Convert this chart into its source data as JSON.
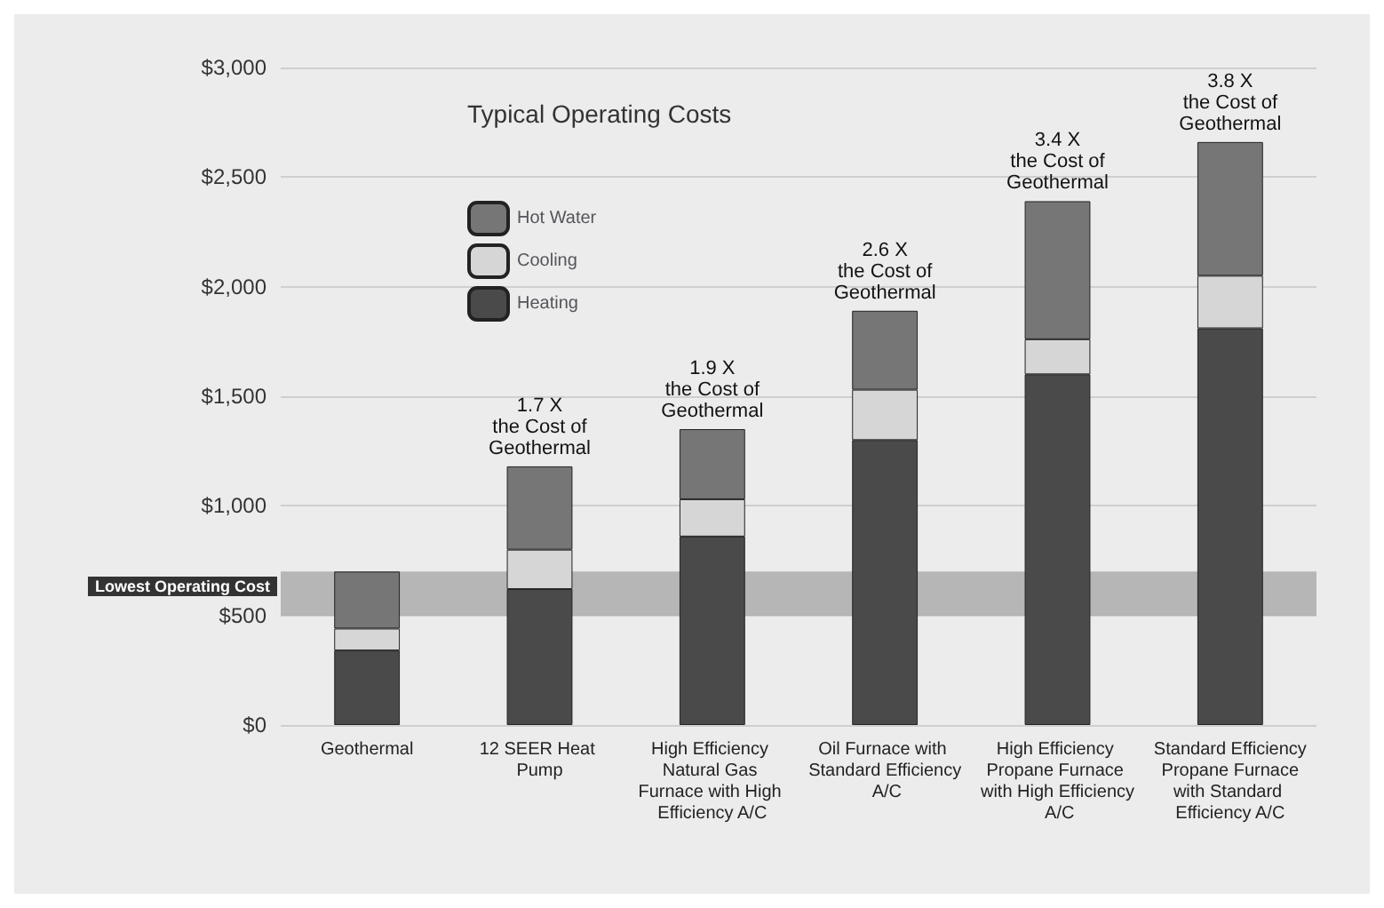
{
  "chart_data": {
    "type": "bar",
    "title": "Typical Operating Costs",
    "stacked": true,
    "categories": [
      "Geothermal",
      "12 SEER Heat Pump",
      "High Efficiency Natural Gas Furnace with High Efficiency A/C",
      "Oil Furnace with Standard Efficiency A/C",
      "High Efficiency Propane Furnace with High Efficiency A/C",
      "Standard Efficiency Propane Furnace with Standard Efficiency A/C"
    ],
    "series": [
      {
        "name": "Heating",
        "color": "#4a4a4a",
        "values": [
          340,
          620,
          860,
          1300,
          1600,
          1810
        ]
      },
      {
        "name": "Cooling",
        "color": "#d6d6d6",
        "values": [
          100,
          180,
          170,
          230,
          160,
          240
        ]
      },
      {
        "name": "Hot Water",
        "color": "#767676",
        "values": [
          260,
          380,
          320,
          360,
          630,
          610
        ]
      }
    ],
    "ylim": [
      0,
      3000
    ],
    "yticks": [
      {
        "value": 0,
        "label": "$0"
      },
      {
        "value": 500,
        "label": "$500"
      },
      {
        "value": 1000,
        "label": "$1,000"
      },
      {
        "value": 1500,
        "label": "$1,500"
      },
      {
        "value": 2000,
        "label": "$2,000"
      },
      {
        "value": 2500,
        "label": "$2,500"
      },
      {
        "value": 3000,
        "label": "$3,000"
      }
    ],
    "grid": "y",
    "legend": "top left",
    "bands": [
      {
        "axis": "y",
        "from": 500,
        "to": 700,
        "label": "Lowest Operating Cost",
        "color": "#8a8a8a"
      }
    ],
    "annotations": [
      {
        "text": "1.7 X\nthe Cost of\nGeothermal",
        "x": "12 SEER Heat Pump",
        "y": 1180
      },
      {
        "text": "1.9 X\nthe Cost of\nGeothermal",
        "x": "High Efficiency Natural Gas Furnace with High Efficiency A/C",
        "y": 1350
      },
      {
        "text": "2.6 X\nthe Cost of\nGeothermal",
        "x": "Oil Furnace with Standard Efficiency A/C",
        "y": 1890
      },
      {
        "text": "3.4 X\nthe Cost of\nGeothermal",
        "x": "High Efficiency Propane Furnace with High Efficiency A/C",
        "y": 2390
      },
      {
        "text": "3.8 X\nthe Cost of\nGeothermal",
        "x": "Standard Efficiency Propane Furnace with Standard Efficiency A/C",
        "y": 2660
      }
    ]
  }
}
